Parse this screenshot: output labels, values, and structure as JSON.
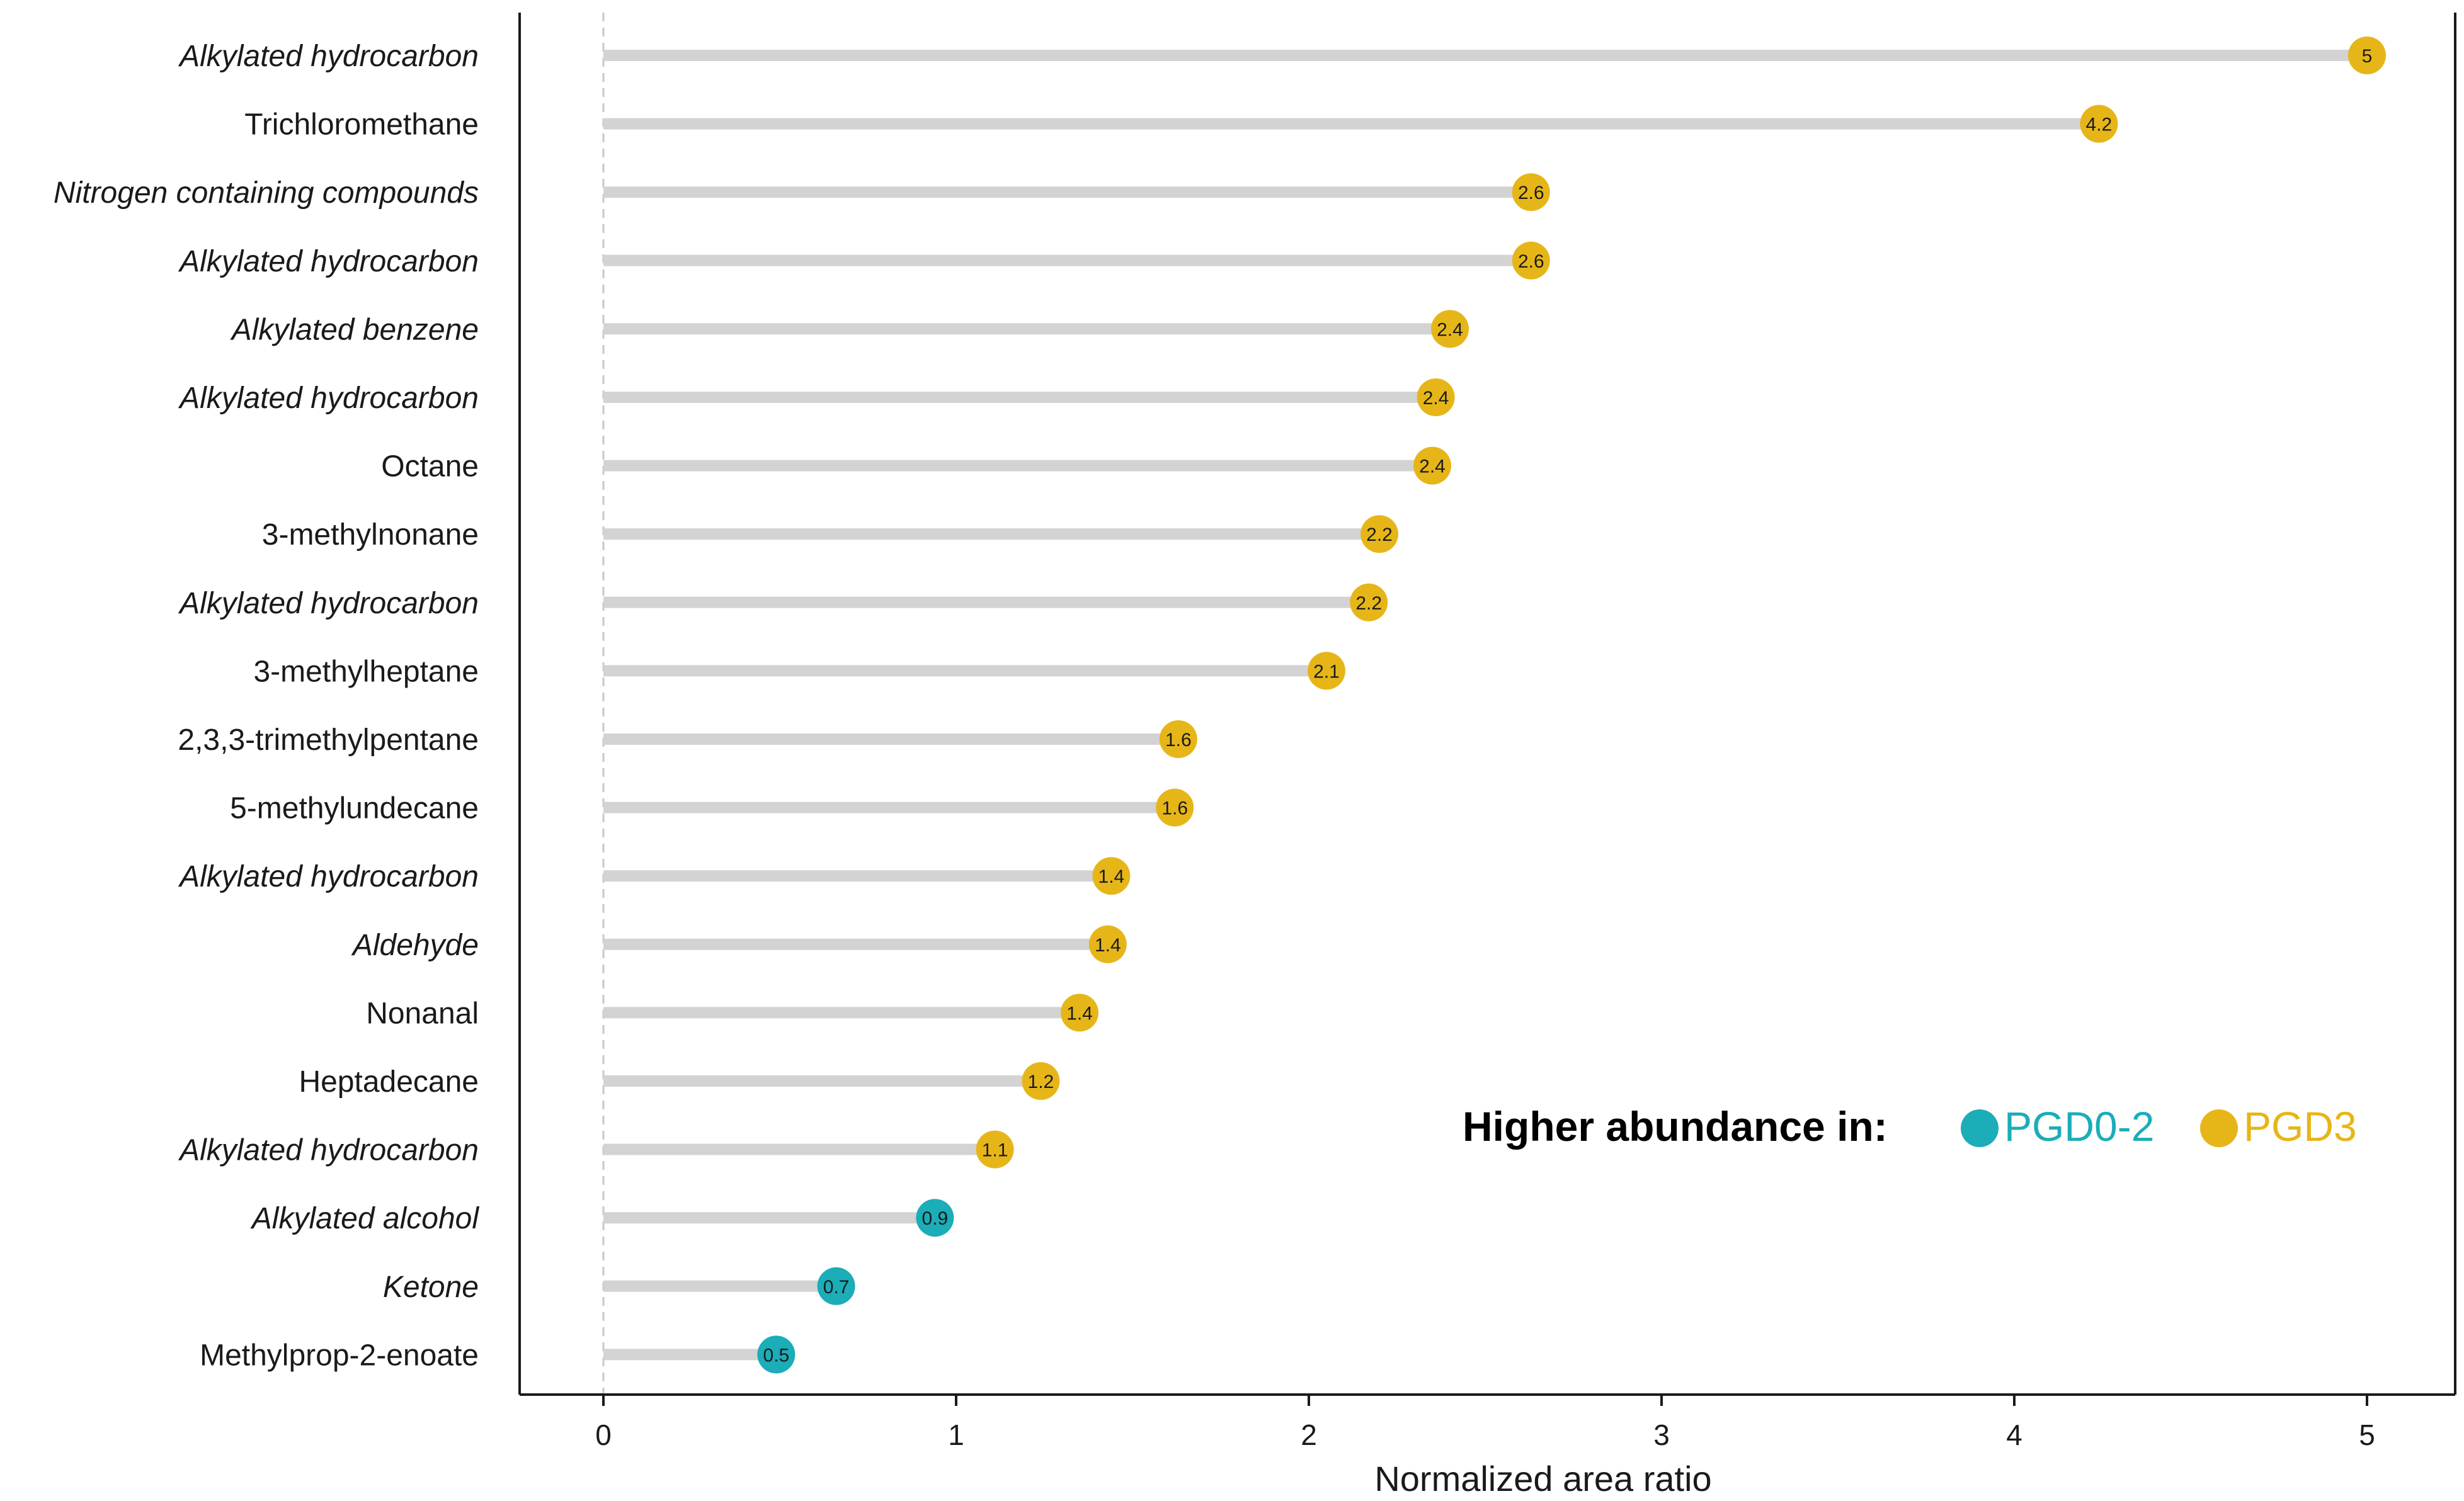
{
  "chart_data": {
    "type": "lollipop",
    "categories": [
      "Alkylated hydrocarbon",
      "Trichloromethane",
      "Nitrogen containing compounds",
      "Alkylated hydrocarbon",
      "Alkylated benzene",
      "Alkylated hydrocarbon",
      "Octane",
      "3-methylnonane",
      "Alkylated hydrocarbon",
      "3-methylheptane",
      "2,3,3-trimethylpentane",
      "5-methylundecane",
      "Alkylated hydrocarbon",
      "Aldehyde",
      "Nonanal",
      "Heptadecane",
      "Alkylated hydrocarbon",
      "Alkylated alcohol",
      "Ketone",
      "Methylprop-2-enoate"
    ],
    "italic": [
      true,
      false,
      true,
      true,
      true,
      true,
      false,
      false,
      true,
      false,
      false,
      false,
      true,
      true,
      false,
      false,
      true,
      true,
      true,
      false
    ],
    "values": [
      5.0,
      4.24,
      2.63,
      2.63,
      2.4,
      2.36,
      2.35,
      2.2,
      2.17,
      2.05,
      1.63,
      1.62,
      1.44,
      1.43,
      1.35,
      1.24,
      1.11,
      0.94,
      0.66,
      0.49
    ],
    "data_labels": [
      "5",
      "4.2",
      "2.6",
      "2.6",
      "2.4",
      "2.4",
      "2.4",
      "2.2",
      "2.2",
      "2.1",
      "1.6",
      "1.6",
      "1.4",
      "1.4",
      "1.4",
      "1.2",
      "1.1",
      "0.9",
      "0.7",
      "0.5"
    ],
    "groups": [
      "PGD3",
      "PGD3",
      "PGD3",
      "PGD3",
      "PGD3",
      "PGD3",
      "PGD3",
      "PGD3",
      "PGD3",
      "PGD3",
      "PGD3",
      "PGD3",
      "PGD3",
      "PGD3",
      "PGD3",
      "PGD3",
      "PGD3",
      "PGD0-2",
      "PGD0-2",
      "PGD0-2"
    ],
    "xlabel": "Normalized area ratio",
    "ylabel": "",
    "title": "",
    "xlim": [
      -0.25,
      5.25
    ],
    "xticks": [
      0,
      1,
      2,
      3,
      4,
      5
    ],
    "reference_line_x": 0,
    "grid": false,
    "legend": {
      "title": "Higher abundance in:",
      "placement": "right",
      "entries": [
        {
          "name": "PGD0-2",
          "color": "#1BADB8"
        },
        {
          "name": "PGD3",
          "color": "#E6B619"
        }
      ]
    },
    "colors": {
      "PGD0-2": "#1BADB8",
      "PGD3": "#E6B619",
      "stem": "#D3D3D3",
      "axis": "#1a1a1a",
      "reference_line": "#C8C8C8"
    }
  }
}
